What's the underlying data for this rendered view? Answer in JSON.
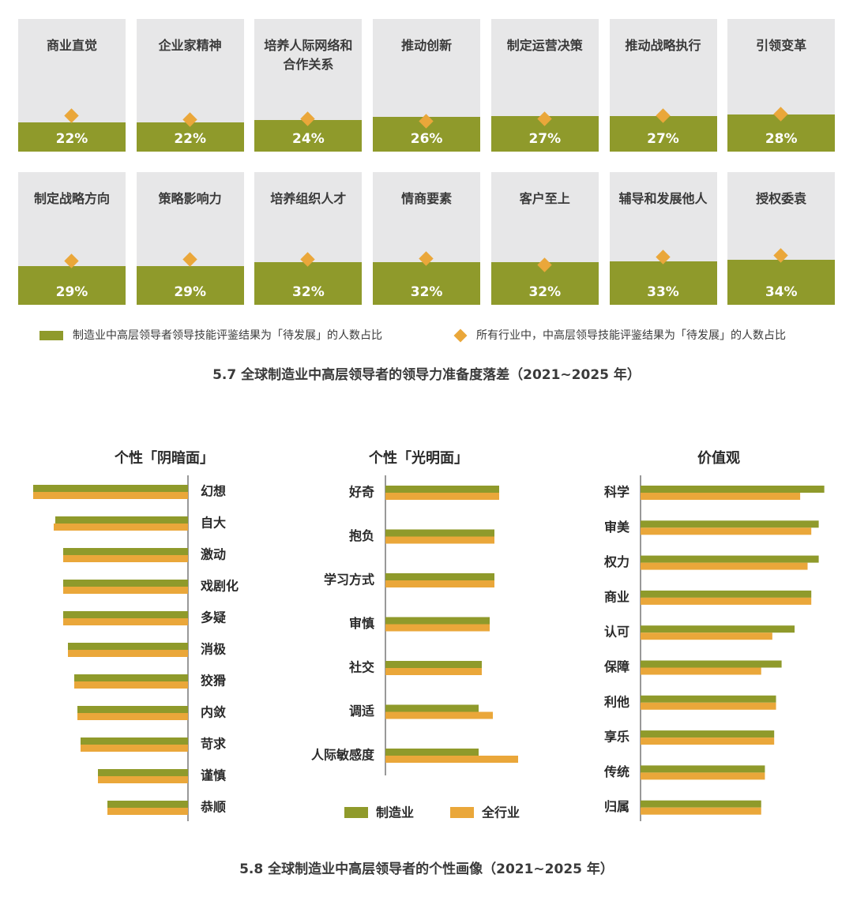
{
  "chart_data": [
    {
      "type": "bar",
      "categories": [
        "商业直觉",
        "企业家精神",
        "培养人际网络和合作关系",
        "推动创新",
        "制定运营决策",
        "推动战略执行",
        "引领变革",
        "制定战略方向",
        "策略影响力",
        "培养组织人才",
        "情商要素",
        "客户至上",
        "辅导和发展他人",
        "授权委袁"
      ],
      "tile_labels": [
        "商业直觉",
        "企业家精神",
        "培养人际网络和\n合作关系",
        "推动创新",
        "制定运营决策",
        "推动战略执行",
        "引领变革",
        "制定战略方向",
        "策略影响力",
        "培养组织人才",
        "情商要素",
        "客户至上",
        "辅导和发展他人",
        "授权委袁"
      ],
      "labels": [
        "22%",
        "22%",
        "24%",
        "26%",
        "27%",
        "27%",
        "28%",
        "29%",
        "29%",
        "32%",
        "32%",
        "32%",
        "33%",
        "34%"
      ],
      "series": [
        {
          "name": "制造业中高层领导者领导技能评鉴结果为「待发展」的人数占比",
          "values": [
            22,
            22,
            24,
            26,
            27,
            27,
            28,
            29,
            29,
            32,
            32,
            32,
            33,
            34
          ]
        },
        {
          "name": "所有行业中，中高层领导技能评鉴结果为「待发展」的人数占比",
          "values": [
            27,
            24,
            25,
            23,
            25,
            27,
            28,
            33,
            34,
            34,
            35,
            30,
            36,
            37
          ]
        }
      ],
      "title": "5.7 全球制造业中高层领导者的领导力准备度落差（2021~2025 年）",
      "ylim": [
        0,
        100
      ]
    },
    {
      "type": "bar",
      "title": "个性「阴暗面」",
      "categories": [
        "幻想",
        "自大",
        "激动",
        "戏剧化",
        "多疑",
        "消极",
        "狡猾",
        "内敛",
        "苛求",
        "谨慎",
        "恭顺"
      ],
      "series": [
        {
          "name": "制造业",
          "values": [
            98,
            84,
            79,
            79,
            79,
            76,
            72,
            70,
            68,
            57,
            51
          ]
        },
        {
          "name": "全行业",
          "values": [
            98,
            85,
            79,
            79,
            79,
            76,
            72,
            70,
            68,
            57,
            51
          ]
        }
      ]
    },
    {
      "type": "bar",
      "title": "个性「光明面」",
      "categories": [
        "好奇",
        "抱负",
        "学习方式",
        "审慎",
        "社交",
        "调适",
        "人际敏感度"
      ],
      "series": [
        {
          "name": "制造业",
          "values": [
            72,
            69,
            69,
            66,
            61,
            59,
            59
          ]
        },
        {
          "name": "全行业",
          "values": [
            72,
            69,
            69,
            66,
            61,
            68,
            84
          ]
        }
      ]
    },
    {
      "type": "bar",
      "title": "价值观",
      "categories": [
        "科学",
        "审美",
        "权力",
        "商业",
        "认可",
        "保障",
        "利他",
        "享乐",
        "传统",
        "归属"
      ],
      "series": [
        {
          "name": "制造业",
          "values": [
            99,
            96,
            96,
            92,
            83,
            76,
            73,
            72,
            67,
            65
          ]
        },
        {
          "name": "全行业",
          "values": [
            86,
            92,
            90,
            92,
            71,
            65,
            73,
            72,
            67,
            65
          ]
        }
      ]
    }
  ],
  "legend_58": {
    "series1": "制造业",
    "series2": "全行业"
  },
  "caption_58": "5.8 全球制造业中高层领导者的个性画像（2021~2025 年）",
  "colors": {
    "olive": "#8f9a2b",
    "orange": "#eaa73a",
    "tile_bg": "#e7e7e8"
  }
}
